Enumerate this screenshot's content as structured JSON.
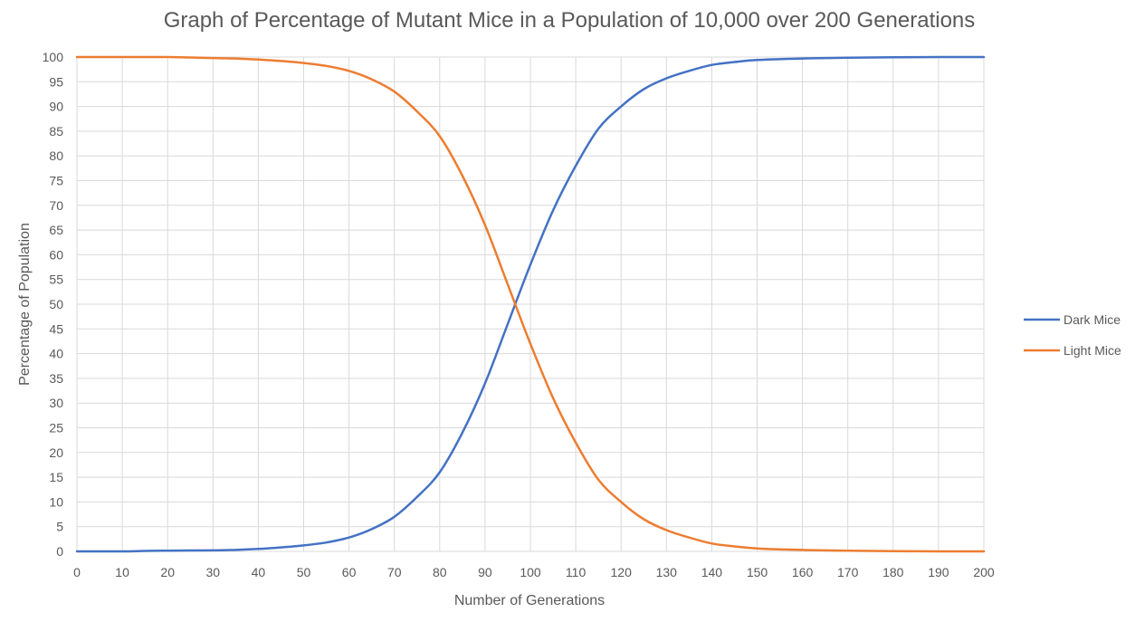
{
  "chart_data": {
    "type": "line",
    "title": "Graph of Percentage of Mutant Mice in a Population of 10,000 over 200 Generations",
    "xlabel": "Number of Generations",
    "ylabel": "Percentage of Population",
    "xlim": [
      0,
      200
    ],
    "ylim": [
      0,
      100
    ],
    "xticks": [
      0,
      10,
      20,
      30,
      40,
      50,
      60,
      70,
      80,
      90,
      100,
      110,
      120,
      130,
      140,
      150,
      160,
      170,
      180,
      190,
      200
    ],
    "yticks": [
      0,
      5,
      10,
      15,
      20,
      25,
      30,
      35,
      40,
      45,
      50,
      55,
      60,
      65,
      70,
      75,
      80,
      85,
      90,
      95,
      100
    ],
    "grid": true,
    "legend_position": "right",
    "series": [
      {
        "name": "Dark Mice",
        "color": "#4472c4",
        "x": [
          0,
          10,
          15,
          20,
          30,
          35,
          40,
          45,
          50,
          55,
          60,
          65,
          70,
          75,
          80,
          85,
          90,
          95,
          100,
          105,
          110,
          115,
          120,
          125,
          130,
          135,
          140,
          145,
          150,
          160,
          170,
          180,
          190,
          200
        ],
        "y": [
          0,
          0,
          0.1,
          0.15,
          0.2,
          0.3,
          0.5,
          0.8,
          1.2,
          1.8,
          2.8,
          4.5,
          7,
          11,
          16,
          24,
          34,
          46,
          58,
          69,
          78,
          85.5,
          90,
          93.5,
          95.7,
          97.2,
          98.4,
          99,
          99.4,
          99.7,
          99.85,
          99.95,
          100,
          100
        ]
      },
      {
        "name": "Light Mice",
        "color": "#ed7d31",
        "x": [
          0,
          10,
          20,
          25,
          30,
          35,
          40,
          45,
          50,
          55,
          60,
          65,
          70,
          75,
          80,
          85,
          90,
          95,
          100,
          105,
          110,
          115,
          120,
          125,
          130,
          135,
          140,
          145,
          150,
          155,
          160,
          170,
          180,
          190,
          200
        ],
        "y": [
          100,
          100,
          100,
          99.9,
          99.8,
          99.7,
          99.5,
          99.2,
          98.8,
          98.2,
          97.2,
          95.5,
          93,
          89,
          84,
          76,
          66,
          54,
          42,
          31,
          22,
          14.5,
          10,
          6.5,
          4.3,
          2.8,
          1.6,
          1,
          0.6,
          0.4,
          0.3,
          0.15,
          0.05,
          0,
          0
        ]
      }
    ]
  }
}
